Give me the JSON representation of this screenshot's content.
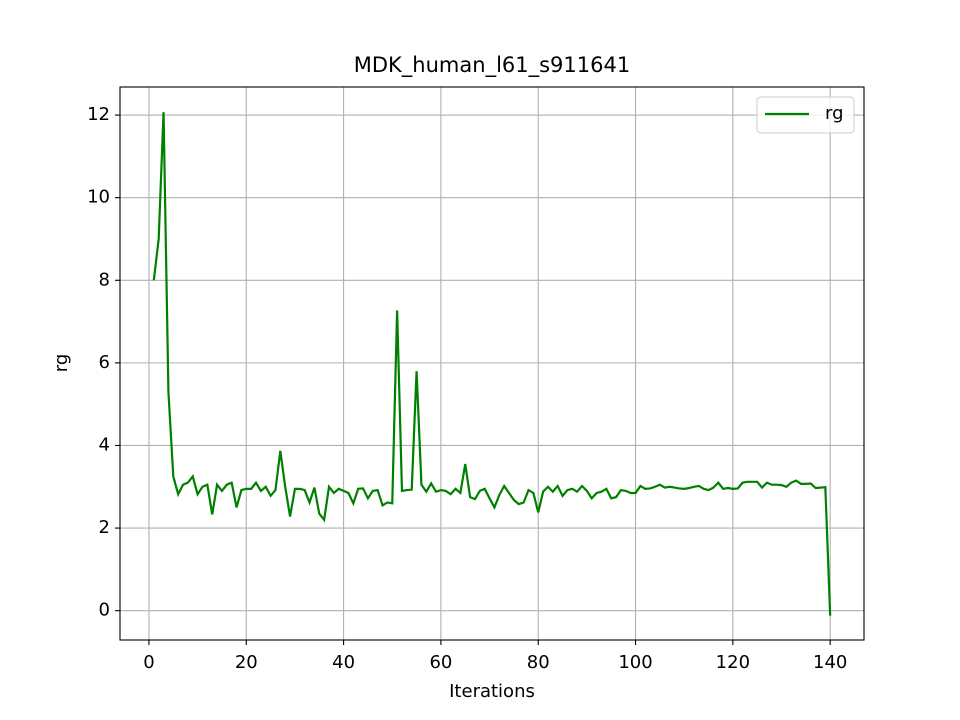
{
  "chart_data": {
    "type": "line",
    "title": "MDK_human_l61_s911641",
    "x_label": "Iterations",
    "y_label": "rg",
    "x": [
      1,
      2,
      3,
      4,
      5,
      6,
      7,
      8,
      9,
      10,
      11,
      12,
      13,
      14,
      15,
      16,
      17,
      18,
      19,
      20,
      21,
      22,
      23,
      24,
      25,
      26,
      27,
      28,
      29,
      30,
      31,
      32,
      33,
      34,
      35,
      36,
      37,
      38,
      39,
      40,
      41,
      42,
      43,
      44,
      45,
      46,
      47,
      48,
      49,
      50,
      51,
      52,
      53,
      54,
      55,
      56,
      57,
      58,
      59,
      60,
      61,
      62,
      63,
      64,
      65,
      66,
      67,
      68,
      69,
      70,
      71,
      72,
      73,
      74,
      75,
      76,
      77,
      78,
      79,
      80,
      81,
      82,
      83,
      84,
      85,
      86,
      87,
      88,
      89,
      90,
      91,
      92,
      93,
      94,
      95,
      96,
      97,
      98,
      99,
      100,
      101,
      102,
      103,
      104,
      105,
      106,
      107,
      108,
      109,
      110,
      111,
      112,
      113,
      114,
      115,
      116,
      117,
      118,
      119,
      120,
      121,
      122,
      123,
      124,
      125,
      126,
      127,
      128,
      129,
      130,
      131,
      132,
      133,
      134,
      135,
      136,
      137,
      138,
      139,
      140
    ],
    "series": [
      {
        "name": "rg",
        "color": "#008000",
        "values": [
          8.0,
          9.0,
          12.07,
          5.3,
          3.25,
          2.82,
          3.05,
          3.1,
          3.25,
          2.82,
          3.0,
          3.05,
          2.33,
          3.05,
          2.9,
          3.05,
          3.1,
          2.5,
          2.92,
          2.95,
          2.95,
          3.1,
          2.9,
          3.0,
          2.78,
          2.92,
          3.87,
          3.0,
          2.28,
          2.95,
          2.95,
          2.92,
          2.62,
          2.98,
          2.35,
          2.2,
          3.0,
          2.85,
          2.95,
          2.9,
          2.85,
          2.6,
          2.95,
          2.96,
          2.72,
          2.9,
          2.92,
          2.55,
          2.62,
          2.6,
          7.27,
          2.9,
          2.92,
          2.93,
          5.8,
          3.05,
          2.88,
          3.08,
          2.88,
          2.92,
          2.9,
          2.82,
          2.95,
          2.85,
          3.55,
          2.75,
          2.7,
          2.9,
          2.95,
          2.72,
          2.5,
          2.8,
          3.02,
          2.85,
          2.68,
          2.58,
          2.62,
          2.92,
          2.85,
          2.38,
          2.88,
          3.0,
          2.88,
          3.02,
          2.78,
          2.92,
          2.95,
          2.88,
          3.02,
          2.9,
          2.72,
          2.85,
          2.88,
          2.95,
          2.72,
          2.75,
          2.92,
          2.9,
          2.85,
          2.85,
          3.02,
          2.95,
          2.96,
          3.0,
          3.05,
          2.98,
          3.0,
          2.98,
          2.96,
          2.95,
          2.97,
          3.0,
          3.02,
          2.95,
          2.92,
          2.98,
          3.1,
          2.95,
          2.97,
          2.95,
          2.96,
          3.1,
          3.12,
          3.12,
          3.12,
          2.98,
          3.1,
          3.05,
          3.05,
          3.04,
          3.0,
          3.1,
          3.15,
          3.07,
          3.07,
          3.08,
          2.97,
          2.98,
          2.99,
          -0.12
        ]
      }
    ],
    "xlim": [
      -5.95,
      146.95
    ],
    "xticks": [
      0,
      20,
      40,
      60,
      80,
      100,
      120,
      140
    ],
    "ylim": [
      -0.71,
      12.68
    ],
    "yticks": [
      0,
      2,
      4,
      6,
      8,
      10,
      12
    ],
    "grid": true,
    "legend": "upper right"
  }
}
